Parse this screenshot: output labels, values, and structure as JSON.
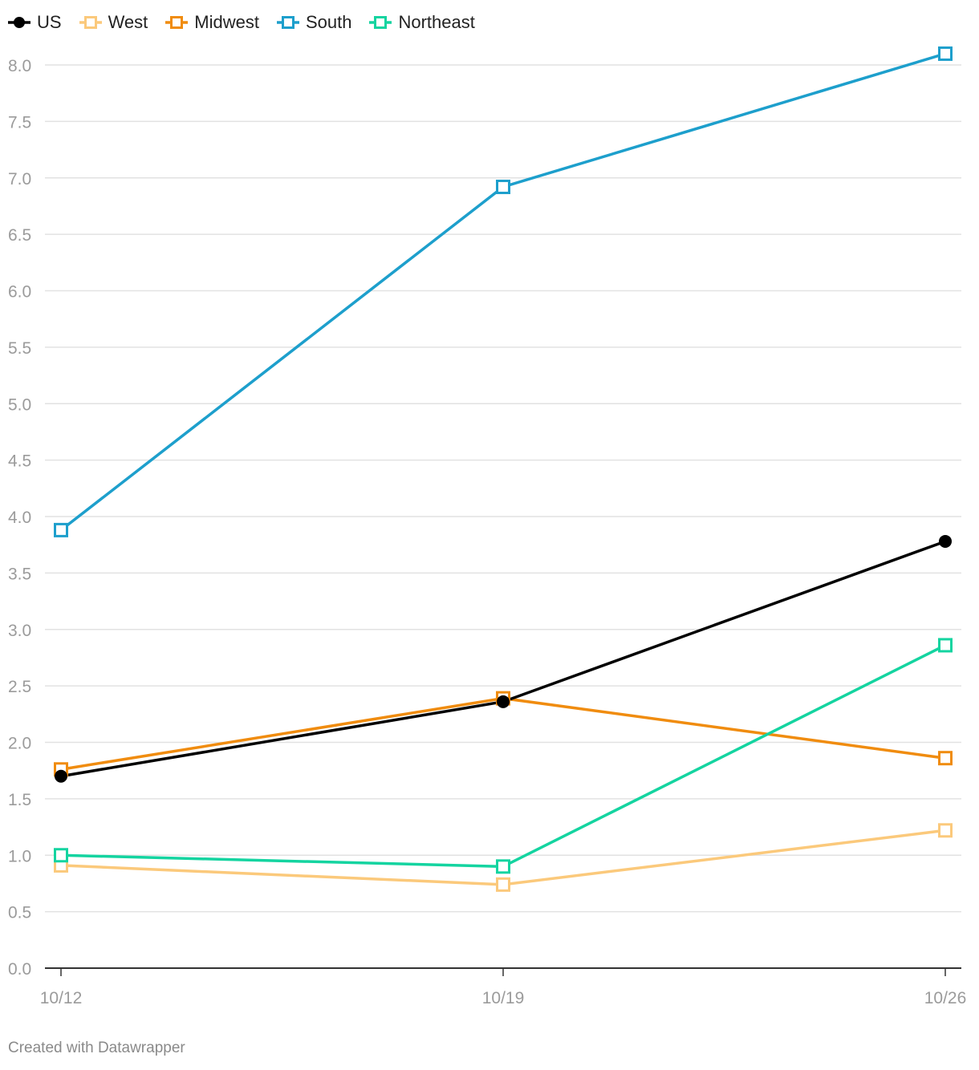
{
  "chart_data": {
    "type": "line",
    "title": "",
    "xlabel": "",
    "ylabel": "",
    "categories": [
      "10/12",
      "10/19",
      "10/26"
    ],
    "ylim": [
      0,
      8.0
    ],
    "yticks": [
      "0.0",
      "0.5",
      "1.0",
      "1.5",
      "2.0",
      "2.5",
      "3.0",
      "3.5",
      "4.0",
      "4.5",
      "5.0",
      "5.5",
      "6.0",
      "6.5",
      "7.0",
      "7.5",
      "8.0"
    ],
    "grid": true,
    "legend_position": "top-left",
    "series": [
      {
        "name": "US",
        "color": "#000000",
        "marker": "circle",
        "values": [
          1.7,
          2.36,
          3.78
        ]
      },
      {
        "name": "West",
        "color": "#fbc97b",
        "marker": "square",
        "values": [
          0.91,
          0.74,
          1.22
        ]
      },
      {
        "name": "Midwest",
        "color": "#f08c0f",
        "marker": "square",
        "values": [
          1.76,
          2.39,
          1.86
        ]
      },
      {
        "name": "South",
        "color": "#1d9fcc",
        "marker": "square",
        "values": [
          3.88,
          6.92,
          8.1
        ]
      },
      {
        "name": "Northeast",
        "color": "#14d4a0",
        "marker": "square",
        "values": [
          1.0,
          0.9,
          2.86
        ]
      }
    ]
  },
  "footer": {
    "credit": "Created with Datawrapper"
  }
}
